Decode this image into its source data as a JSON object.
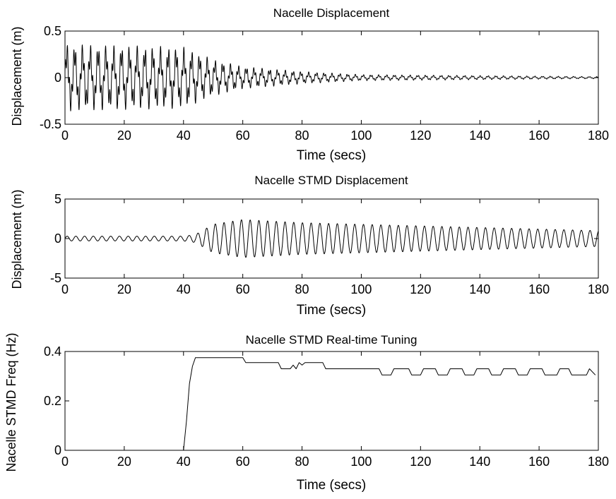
{
  "chart_data": [
    {
      "type": "line",
      "title": "Nacelle Displacement",
      "xlabel": "Time (secs)",
      "ylabel": "Displacement (m)",
      "xlim": [
        0,
        180
      ],
      "ylim": [
        -0.5,
        0.5
      ],
      "xticks": [
        0,
        20,
        40,
        60,
        80,
        100,
        120,
        140,
        160,
        180
      ],
      "xtick_labels": [
        "0",
        "20",
        "40",
        "60",
        "80",
        "100",
        "120",
        "140",
        "160",
        "180"
      ],
      "yticks": [
        -0.5,
        0,
        0.5
      ],
      "ytick_labels": [
        "-0.5",
        "0",
        "0.5"
      ],
      "grid": false,
      "signal": {
        "kind": "decaying_oscillation",
        "frequency_hz": 0.38,
        "high_frequency_hz": 1.4,
        "envelope": [
          {
            "t": 0,
            "amp": 0.33
          },
          {
            "t": 40,
            "amp": 0.3
          },
          {
            "t": 50,
            "amp": 0.18
          },
          {
            "t": 60,
            "amp": 0.11
          },
          {
            "t": 80,
            "amp": 0.06
          },
          {
            "t": 100,
            "amp": 0.03
          },
          {
            "t": 140,
            "amp": 0.02
          },
          {
            "t": 180,
            "amp": 0.01
          }
        ]
      }
    },
    {
      "type": "line",
      "title": "Nacelle STMD Displacement",
      "xlabel": "Time (secs)",
      "ylabel": "Displacement (m)",
      "xlim": [
        0,
        180
      ],
      "ylim": [
        -5,
        5
      ],
      "xticks": [
        0,
        20,
        40,
        60,
        80,
        100,
        120,
        140,
        160,
        180
      ],
      "xtick_labels": [
        "0",
        "20",
        "40",
        "60",
        "80",
        "100",
        "120",
        "140",
        "160",
        "180"
      ],
      "yticks": [
        -5,
        0,
        5
      ],
      "ytick_labels": [
        "-5",
        "0",
        "5"
      ],
      "grid": false,
      "signal": {
        "kind": "growing_then_decaying_oscillation",
        "frequency_hz": 0.34,
        "envelope": [
          {
            "t": 0,
            "amp": 0.3
          },
          {
            "t": 40,
            "amp": 0.3
          },
          {
            "t": 44,
            "amp": 0.5
          },
          {
            "t": 50,
            "amp": 1.8
          },
          {
            "t": 60,
            "amp": 2.4
          },
          {
            "t": 80,
            "amp": 2.0
          },
          {
            "t": 100,
            "amp": 1.8
          },
          {
            "t": 140,
            "amp": 1.4
          },
          {
            "t": 180,
            "amp": 1.0
          }
        ]
      }
    },
    {
      "type": "line",
      "title": "Nacelle STMD Real-time Tuning",
      "xlabel": "Time (secs)",
      "ylabel": "Nacelle STMD Freq (Hz)",
      "xlim": [
        0,
        180
      ],
      "ylim": [
        0,
        0.4
      ],
      "xticks": [
        0,
        20,
        40,
        60,
        80,
        100,
        120,
        140,
        160,
        180
      ],
      "xtick_labels": [
        "0",
        "20",
        "40",
        "60",
        "80",
        "100",
        "120",
        "140",
        "160",
        "180"
      ],
      "yticks": [
        0,
        0.2,
        0.4
      ],
      "ytick_labels": [
        "0",
        "0.2",
        "0.4"
      ],
      "grid": false,
      "x": [
        40,
        41,
        42,
        43,
        44,
        60,
        61,
        72,
        73,
        76,
        77,
        78,
        79,
        80,
        81,
        87,
        88,
        106,
        107,
        110,
        111,
        116,
        117,
        120,
        121,
        125,
        126,
        129,
        130,
        134,
        135,
        138,
        139,
        143,
        144,
        147,
        148,
        152,
        153,
        156,
        157,
        161,
        162,
        166,
        167,
        170,
        171,
        176,
        177,
        179
      ],
      "y": [
        0.0,
        0.12,
        0.27,
        0.34,
        0.375,
        0.375,
        0.355,
        0.355,
        0.33,
        0.33,
        0.345,
        0.33,
        0.355,
        0.345,
        0.355,
        0.355,
        0.33,
        0.33,
        0.305,
        0.305,
        0.33,
        0.33,
        0.305,
        0.305,
        0.33,
        0.33,
        0.305,
        0.305,
        0.33,
        0.33,
        0.305,
        0.305,
        0.33,
        0.33,
        0.305,
        0.305,
        0.33,
        0.33,
        0.305,
        0.305,
        0.33,
        0.33,
        0.305,
        0.305,
        0.33,
        0.33,
        0.305,
        0.305,
        0.33,
        0.305
      ]
    }
  ]
}
